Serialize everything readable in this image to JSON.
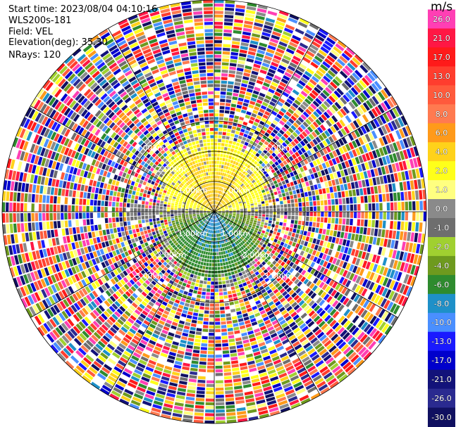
{
  "info": {
    "start_time": "Start time: 2023/08/04 04:10:16",
    "instrument": "WLS200s-181",
    "field": "Field: VEL",
    "elevation": "Elevation(deg): 35.30",
    "nrays": "NRays: 120"
  },
  "colorbar": {
    "unit": "m/s",
    "ticks": [
      "26.0",
      "21.0",
      "17.0",
      "13.0",
      "10.0",
      "8.0",
      "6.0",
      "4.0",
      "2.0",
      "1.0",
      "0.0",
      "-1.0",
      "-2.0",
      "-4.0",
      "-6.0",
      "-8.0",
      "-10.0",
      "-13.0",
      "-17.0",
      "-21.0",
      "-26.0",
      "-30.0"
    ],
    "colors": [
      "#ff3fb4",
      "#ff1744",
      "#ff1a1a",
      "#ff3d2e",
      "#ff5a3c",
      "#ff7a50",
      "#ff9a1a",
      "#ffd21a",
      "#ffff1a",
      "#ffff80",
      "#8a8a8a",
      "#6e6e6e",
      "#a0d030",
      "#6e9a1e",
      "#2e8b2e",
      "#1e90c8",
      "#4a8fff",
      "#1a1aff",
      "#0000cc",
      "#12127a",
      "#2a2a90",
      "#101060"
    ]
  },
  "chart_data": {
    "type": "heatmap",
    "projection": "polar-ppi",
    "title": "",
    "field": "VEL",
    "units": "m/s",
    "n_rays": 120,
    "range_rings_km": [
      1.0,
      2.0,
      3.0
    ],
    "range_ring_labels": [
      "1.00km",
      "2.00km",
      "3.00km"
    ],
    "radial_lines_deg": [
      0,
      30,
      60,
      90,
      120,
      150,
      180,
      210,
      240,
      270,
      300,
      330
    ],
    "colorbar_min": -30.0,
    "colorbar_max": 26.0,
    "pattern": {
      "north_half_inner_km": 2.1,
      "north_velocity_m_s": [
        2.0,
        6.0
      ],
      "south_half_inner_km": 1.9,
      "south_velocity_m_s": [
        -8.0,
        -2.0
      ],
      "near_horizon_velocity_m_s": 0.0,
      "outer_region": "noise (random values across full scale)"
    },
    "grid": true
  }
}
